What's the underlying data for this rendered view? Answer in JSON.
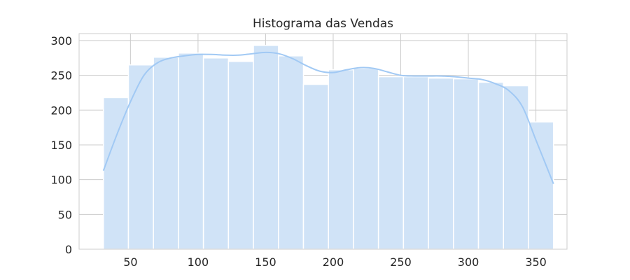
{
  "chart_data": {
    "type": "histogram",
    "title": "Histograma das Vendas",
    "xlabel": "",
    "ylabel": "",
    "xlim": [
      12,
      373
    ],
    "ylim": [
      0,
      310
    ],
    "x_ticks": [
      50,
      100,
      150,
      200,
      250,
      300,
      350
    ],
    "y_ticks": [
      0,
      50,
      100,
      150,
      200,
      250,
      300
    ],
    "grid": true,
    "bin_edges": [
      30,
      48.5,
      67,
      85.5,
      104,
      122.5,
      141,
      159.5,
      178,
      196.5,
      215,
      233.5,
      252,
      270.5,
      289,
      307.5,
      326,
      344.5,
      363
    ],
    "counts": [
      218,
      265,
      276,
      282,
      275,
      270,
      293,
      278,
      237,
      258,
      260,
      248,
      248,
      246,
      245,
      240,
      235,
      183
    ],
    "kde": {
      "x": [
        30,
        40,
        50,
        60,
        70,
        80,
        90,
        100,
        110,
        120,
        130,
        140,
        150,
        160,
        170,
        180,
        190,
        200,
        210,
        220,
        230,
        240,
        250,
        260,
        270,
        280,
        290,
        300,
        310,
        320,
        330,
        340,
        350,
        363
      ],
      "y": [
        113,
        165,
        212,
        250,
        268,
        275,
        278,
        280,
        280,
        279,
        279,
        281,
        283,
        281,
        274,
        264,
        256,
        254,
        258,
        261,
        260,
        255,
        250,
        249,
        249,
        249,
        248,
        246,
        244,
        238,
        228,
        205,
        157,
        94
      ]
    },
    "colors": {
      "bar_fill": "#d0e3f7",
      "bar_edge": "#ffffff",
      "kde_line": "#a1c9f4",
      "grid": "#cccccc",
      "text": "#262626"
    }
  }
}
